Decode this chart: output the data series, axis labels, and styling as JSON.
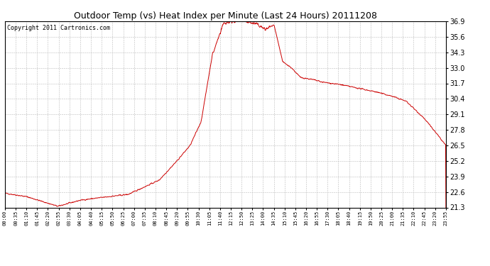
{
  "title": "Outdoor Temp (vs) Heat Index per Minute (Last 24 Hours) 20111208",
  "copyright": "Copyright 2011 Cartronics.com",
  "line_color": "#cc0000",
  "background_color": "#ffffff",
  "grid_color": "#bbbbbb",
  "ylim": [
    21.3,
    36.9
  ],
  "yticks": [
    21.3,
    22.6,
    23.9,
    25.2,
    26.5,
    27.8,
    29.1,
    30.4,
    31.7,
    33.0,
    34.3,
    35.6,
    36.9
  ],
  "xtick_labels": [
    "00:00",
    "00:35",
    "01:10",
    "01:45",
    "02:20",
    "02:55",
    "03:30",
    "04:05",
    "04:40",
    "05:15",
    "05:50",
    "06:25",
    "07:00",
    "07:35",
    "08:10",
    "08:45",
    "09:20",
    "09:55",
    "10:30",
    "11:05",
    "11:40",
    "12:15",
    "12:50",
    "13:25",
    "14:00",
    "14:35",
    "15:10",
    "15:45",
    "16:20",
    "16:55",
    "17:30",
    "18:05",
    "18:40",
    "19:15",
    "19:50",
    "20:25",
    "21:00",
    "21:35",
    "22:10",
    "22:45",
    "23:20",
    "23:55"
  ],
  "num_points": 1440,
  "seed": 42,
  "title_fontsize": 9,
  "copyright_fontsize": 6,
  "ytick_fontsize": 7,
  "xtick_fontsize": 5
}
